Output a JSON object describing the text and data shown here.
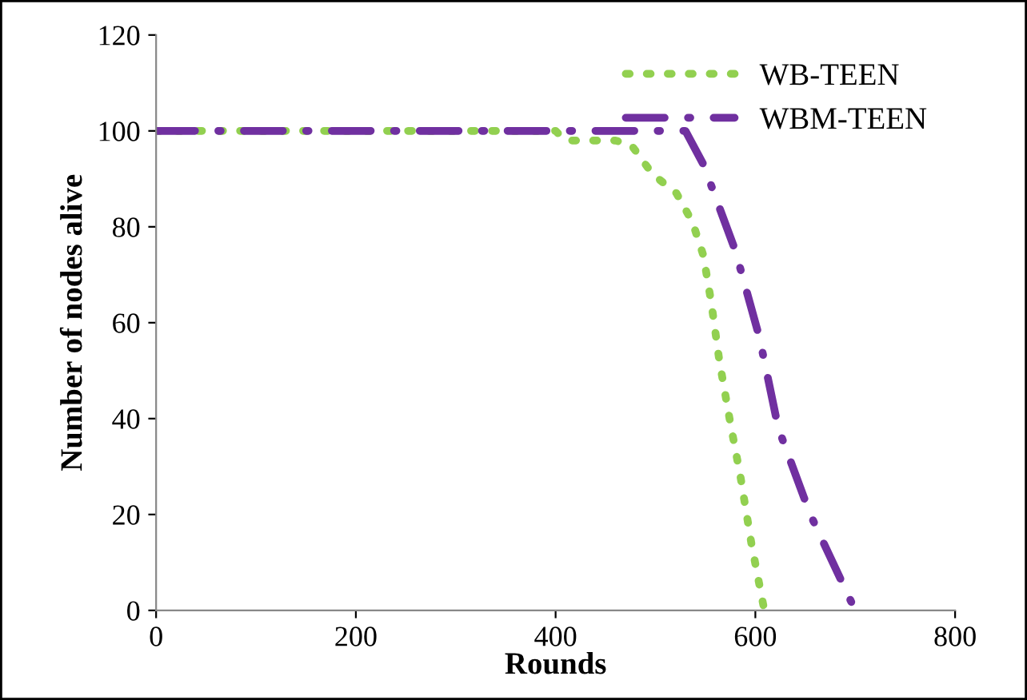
{
  "chart_data": {
    "type": "line",
    "xlabel": "Rounds",
    "ylabel": "Number of nodes alive",
    "series": [
      {
        "name": "WB-TEEN",
        "color": "#92d050",
        "line_style": "dotted",
        "x": [
          0,
          400,
          410,
          460,
          476,
          497,
          521,
          537,
          548,
          556,
          564,
          575,
          585,
          596,
          609
        ],
        "values": [
          100,
          100,
          98,
          98,
          97,
          91,
          87,
          81,
          74,
          64,
          52,
          39,
          28,
          14,
          0
        ]
      },
      {
        "name": "WBM-TEEN",
        "color": "#7030a0",
        "line_style": "dashdot",
        "x": [
          0,
          530,
          548,
          580,
          604,
          623,
          655,
          700
        ],
        "values": [
          100,
          100,
          93,
          75,
          57,
          38,
          20,
          0
        ]
      }
    ],
    "xlim": [
      0,
      800
    ],
    "xticks": [
      0,
      200,
      400,
      600,
      800
    ],
    "ylim": [
      0,
      120
    ],
    "yticks": [
      0,
      20,
      40,
      60,
      80,
      100,
      120
    ],
    "grid": false,
    "legend": "top right"
  }
}
